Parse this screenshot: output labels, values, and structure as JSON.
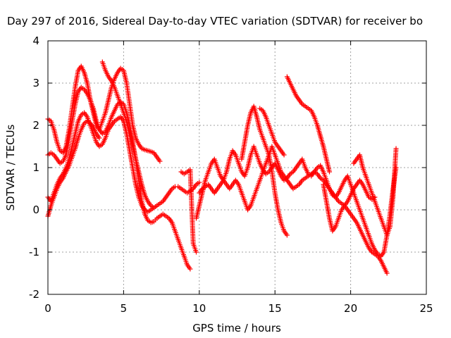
{
  "chart_data": {
    "type": "scatter",
    "title": "Day 297 of 2016, Sidereal Day-to-day VTEC variation (SDTVAR) for receiver bo",
    "xlabel": "GPS time / hours",
    "ylabel": "SDTVAR / TECUs",
    "xlim": [
      0,
      25
    ],
    "ylim": [
      -2,
      4
    ],
    "xticks": [
      "0",
      "5",
      "10",
      "15",
      "20",
      "25"
    ],
    "yticks": [
      "-2",
      "-1",
      "0",
      "1",
      "2",
      "3",
      "4"
    ],
    "grid": true,
    "legend": "none",
    "marker": "plus",
    "color": "#ff0000",
    "series": [
      {
        "x": [
          0.0,
          0.2,
          0.4,
          0.6,
          0.8,
          1.0,
          1.2,
          1.4,
          1.6,
          1.8,
          2.0,
          2.2,
          2.4,
          2.6,
          2.8,
          3.0,
          3.2,
          3.4,
          3.6,
          3.8,
          4.0,
          4.2,
          4.4,
          4.6,
          4.8,
          5.0,
          5.2,
          5.4,
          5.6,
          5.8,
          6.0,
          6.2,
          6.4,
          6.6,
          6.8,
          7.0,
          7.2,
          7.4
        ],
        "y": [
          2.15,
          2.1,
          1.9,
          1.6,
          1.4,
          1.35,
          1.5,
          1.9,
          2.4,
          2.9,
          3.3,
          3.4,
          3.25,
          3.0,
          2.6,
          2.3,
          2.0,
          1.9,
          2.1,
          2.3,
          2.6,
          2.9,
          3.1,
          3.25,
          3.35,
          3.3,
          3.0,
          2.5,
          2.0,
          1.7,
          1.55,
          1.45,
          1.42,
          1.4,
          1.38,
          1.35,
          1.25,
          1.15
        ]
      },
      {
        "x": [
          0.0,
          0.2,
          0.4,
          0.6,
          0.8,
          1.0,
          1.2,
          1.4,
          1.6,
          1.8,
          2.0,
          2.2,
          2.4,
          2.6,
          2.8,
          3.0,
          3.2,
          3.4,
          3.6,
          3.8,
          4.0,
          4.2,
          4.4,
          4.6,
          4.8,
          5.0,
          5.2,
          5.4,
          5.6,
          5.8,
          6.0,
          6.2,
          6.4,
          6.6,
          6.8,
          7.0,
          7.2,
          7.4,
          7.6,
          7.8,
          8.0,
          8.2,
          8.4,
          8.6,
          8.8,
          9.0,
          9.2,
          9.4
        ],
        "y": [
          1.3,
          1.35,
          1.3,
          1.2,
          1.1,
          1.15,
          1.3,
          1.7,
          2.1,
          2.5,
          2.8,
          2.9,
          2.85,
          2.75,
          2.6,
          2.4,
          2.1,
          1.9,
          1.8,
          1.85,
          2.0,
          2.2,
          2.35,
          2.5,
          2.55,
          2.5,
          2.3,
          2.0,
          1.6,
          1.2,
          0.7,
          0.2,
          -0.1,
          -0.25,
          -0.3,
          -0.28,
          -0.2,
          -0.15,
          -0.1,
          -0.15,
          -0.2,
          -0.3,
          -0.5,
          -0.7,
          -0.9,
          -1.1,
          -1.3,
          -1.4
        ]
      },
      {
        "x": [
          0.0,
          0.2,
          0.4,
          0.6,
          0.8,
          1.0,
          1.2,
          1.4,
          1.6,
          1.8,
          2.0,
          2.2,
          2.4,
          2.6,
          2.8,
          3.0,
          3.2,
          3.4,
          3.6,
          3.8,
          4.0,
          4.2,
          4.4,
          4.6,
          4.8,
          5.0,
          5.2,
          5.4,
          5.6,
          5.8,
          6.0,
          6.2,
          6.4,
          6.6,
          6.8,
          7.0,
          7.2,
          7.4,
          7.6,
          7.8,
          8.0,
          8.2,
          8.4,
          8.6,
          8.8,
          9.0,
          9.2,
          9.4,
          9.6,
          9.8,
          10.0
        ],
        "y": [
          0.3,
          0.2,
          0.4,
          0.6,
          0.75,
          0.85,
          1.0,
          1.2,
          1.5,
          1.8,
          2.1,
          2.25,
          2.3,
          2.2,
          2.0,
          1.8,
          1.6,
          1.5,
          1.55,
          1.7,
          1.9,
          2.0,
          2.1,
          2.15,
          2.2,
          2.1,
          1.8,
          1.4,
          1.0,
          0.6,
          0.3,
          0.1,
          0.0,
          -0.05,
          0.0,
          0.05,
          0.1,
          0.15,
          0.2,
          0.3,
          0.4,
          0.5,
          0.55,
          0.55,
          0.5,
          0.45,
          0.4,
          0.45,
          0.5,
          0.6,
          0.65
        ]
      },
      {
        "x": [
          0.0,
          0.2,
          0.4,
          0.6,
          0.8,
          1.0,
          1.2,
          1.4,
          1.6,
          1.8,
          2.0,
          2.2,
          2.4,
          2.6,
          2.8,
          3.0,
          3.2,
          3.4
        ],
        "y": [
          -0.15,
          0.1,
          0.3,
          0.5,
          0.65,
          0.75,
          0.9,
          1.05,
          1.25,
          1.45,
          1.7,
          1.9,
          2.05,
          2.1,
          2.05,
          1.95,
          1.8,
          1.7
        ]
      },
      {
        "x": [
          3.6,
          3.8,
          4.0,
          4.2,
          4.4,
          4.6,
          4.8,
          5.0,
          5.2,
          5.4,
          5.6,
          5.8,
          6.0,
          6.2,
          6.4,
          6.6,
          6.8,
          7.0
        ],
        "y": [
          3.5,
          3.3,
          3.15,
          3.05,
          2.9,
          2.7,
          2.5,
          2.3,
          2.1,
          1.8,
          1.5,
          1.2,
          0.9,
          0.6,
          0.35,
          0.2,
          0.1,
          0.05
        ]
      },
      {
        "x": [
          8.8,
          9.0,
          9.2,
          9.4,
          9.6,
          9.8
        ],
        "y": [
          0.9,
          0.85,
          0.9,
          0.95,
          -0.8,
          -1.0
        ]
      },
      {
        "x": [
          9.8,
          10.0,
          10.2,
          10.4,
          10.6,
          10.8,
          11.0,
          11.2,
          11.4,
          11.6,
          11.8,
          12.0,
          12.2,
          12.4,
          12.6,
          12.8,
          13.0,
          13.2,
          13.4,
          13.6,
          13.8,
          14.0,
          14.2,
          14.4,
          14.6,
          14.8,
          15.0,
          15.2,
          15.4,
          15.6,
          15.8,
          16.0,
          16.2,
          16.4,
          16.6,
          16.8,
          17.0,
          17.2,
          17.4,
          17.6,
          17.8,
          18.0,
          18.2,
          18.4,
          18.6,
          18.8,
          19.0,
          19.2,
          19.4,
          19.6,
          19.8,
          20.0,
          20.2,
          20.4,
          20.6,
          20.8,
          21.0,
          21.2,
          21.4,
          21.6,
          21.8,
          22.0,
          22.2,
          22.4,
          22.6,
          22.8,
          23.0
        ],
        "y": [
          -0.2,
          0.1,
          0.4,
          0.7,
          0.9,
          1.1,
          1.2,
          1.0,
          0.8,
          0.7,
          0.9,
          1.2,
          1.4,
          1.3,
          1.1,
          0.9,
          0.8,
          1.0,
          1.3,
          1.5,
          1.3,
          1.1,
          0.95,
          0.85,
          0.9,
          1.0,
          1.1,
          0.95,
          0.8,
          0.7,
          0.75,
          0.85,
          0.9,
          1.0,
          1.1,
          1.2,
          1.0,
          0.85,
          0.8,
          0.9,
          1.0,
          1.05,
          0.9,
          0.7,
          0.5,
          0.35,
          0.3,
          0.4,
          0.55,
          0.7,
          0.8,
          0.6,
          0.4,
          0.2,
          0.0,
          -0.2,
          -0.4,
          -0.6,
          -0.8,
          -0.95,
          -1.05,
          -1.1,
          -1.0,
          -0.6,
          -0.1,
          0.5,
          1.0
        ]
      },
      {
        "x": [
          10.0,
          10.2,
          10.4,
          10.6,
          10.8,
          11.0,
          11.2,
          11.4,
          11.6,
          11.8,
          12.0,
          12.2,
          12.4,
          12.6,
          12.8,
          13.0,
          13.2,
          13.4,
          13.6,
          13.8,
          14.0,
          14.2,
          14.4,
          14.6,
          14.8,
          15.0,
          15.2,
          15.4,
          15.6,
          15.8,
          16.0,
          16.2,
          16.4,
          16.6,
          16.8,
          17.0,
          17.2,
          17.4,
          17.6,
          17.8,
          18.0,
          18.2,
          18.4,
          18.6,
          18.8,
          19.0,
          19.2,
          19.4,
          19.6,
          19.8,
          20.0,
          20.2,
          20.4,
          20.6,
          20.8,
          21.0,
          21.2,
          21.4,
          21.6
        ],
        "y": [
          0.4,
          0.5,
          0.55,
          0.6,
          0.5,
          0.4,
          0.5,
          0.6,
          0.7,
          0.6,
          0.5,
          0.6,
          0.7,
          0.6,
          0.4,
          0.2,
          0.0,
          0.1,
          0.3,
          0.5,
          0.7,
          0.9,
          1.1,
          1.3,
          1.5,
          1.3,
          1.1,
          0.9,
          0.8,
          0.7,
          0.6,
          0.5,
          0.55,
          0.6,
          0.7,
          0.75,
          0.8,
          0.85,
          0.9,
          0.85,
          0.75,
          0.7,
          0.6,
          0.5,
          0.4,
          0.3,
          0.2,
          0.15,
          0.1,
          0.2,
          0.35,
          0.5,
          0.6,
          0.7,
          0.6,
          0.45,
          0.3,
          0.25,
          0.3
        ]
      },
      {
        "x": [
          12.8,
          13.0,
          13.2,
          13.4,
          13.6,
          13.8,
          14.0,
          14.2,
          14.4,
          14.6,
          14.8,
          15.0,
          15.2,
          15.4,
          15.6,
          15.8
        ],
        "y": [
          1.2,
          1.6,
          2.0,
          2.3,
          2.45,
          2.2,
          1.9,
          1.7,
          1.5,
          1.3,
          0.9,
          0.4,
          0.0,
          -0.3,
          -0.5,
          -0.6
        ]
      },
      {
        "x": [
          14.0,
          14.2,
          14.4,
          14.6,
          14.8,
          15.0,
          15.2,
          15.4,
          15.6
        ],
        "y": [
          2.4,
          2.35,
          2.2,
          2.0,
          1.8,
          1.6,
          1.5,
          1.4,
          1.3
        ]
      },
      {
        "x": [
          15.8,
          16.0,
          16.2,
          16.4,
          16.6,
          16.8,
          17.0,
          17.2,
          17.4,
          17.6,
          17.8,
          18.0,
          18.2,
          18.4,
          18.6
        ],
        "y": [
          3.15,
          3.0,
          2.85,
          2.7,
          2.6,
          2.5,
          2.45,
          2.4,
          2.35,
          2.2,
          2.0,
          1.75,
          1.5,
          1.2,
          0.9
        ]
      },
      {
        "x": [
          18.2,
          18.4,
          18.6,
          18.8,
          19.0,
          19.2,
          19.4,
          19.6,
          19.8,
          20.0,
          20.2,
          20.4,
          20.6,
          20.8,
          21.0,
          21.2,
          21.4,
          21.6,
          21.8,
          22.0,
          22.2,
          22.4
        ],
        "y": [
          0.6,
          0.2,
          -0.2,
          -0.5,
          -0.4,
          -0.2,
          0.0,
          0.1,
          0.0,
          -0.1,
          -0.2,
          -0.3,
          -0.45,
          -0.6,
          -0.75,
          -0.9,
          -1.0,
          -1.05,
          -1.1,
          -1.2,
          -1.35,
          -1.5
        ]
      },
      {
        "x": [
          20.2,
          20.4,
          20.6,
          20.8,
          21.0,
          21.2,
          21.4,
          21.6,
          21.8,
          22.0,
          22.2,
          22.4,
          22.6,
          22.8,
          23.0
        ],
        "y": [
          1.1,
          1.2,
          1.3,
          1.0,
          0.8,
          0.6,
          0.4,
          0.2,
          0.0,
          -0.2,
          -0.4,
          -0.6,
          -0.4,
          0.3,
          1.45
        ]
      }
    ]
  }
}
